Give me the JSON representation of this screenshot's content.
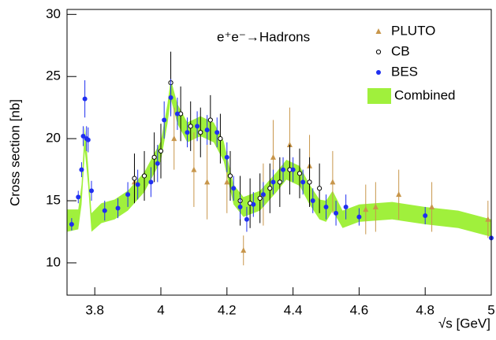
{
  "chart_data": {
    "type": "errorbar",
    "annotation": "e⁺e⁻→Hadrons",
    "x_label": "√s   [GeV]",
    "y_label": "Cross section [nb]",
    "xlim": [
      3.716,
      5.0
    ],
    "ylim": [
      7.4,
      30.4
    ],
    "xticks": [
      3.8,
      4,
      4.2,
      4.4,
      4.6,
      4.8,
      5
    ],
    "yticks": [
      10,
      15,
      20,
      25,
      30
    ],
    "legend": "upper right",
    "band": {
      "name": "Combined",
      "color": "#a0f03c",
      "x": [
        3.716,
        3.75,
        3.76,
        3.77,
        3.78,
        3.79,
        3.82,
        3.86,
        3.9,
        3.95,
        4.0,
        4.02,
        4.03,
        4.05,
        4.08,
        4.12,
        4.16,
        4.19,
        4.22,
        4.25,
        4.3,
        4.35,
        4.38,
        4.42,
        4.45,
        4.48,
        4.5,
        4.52,
        4.55,
        4.6,
        4.7,
        4.8,
        4.9,
        5.0
      ],
      "lower": [
        12.5,
        12.7,
        14.7,
        19.0,
        16.2,
        12.5,
        13.2,
        13.5,
        14.2,
        15.7,
        18.2,
        21.2,
        23.2,
        21.2,
        19.7,
        20.2,
        19.7,
        18.2,
        14.7,
        13.7,
        14.2,
        15.7,
        16.7,
        16.2,
        14.7,
        13.5,
        13.3,
        14.2,
        12.8,
        13.3,
        13.5,
        13.1,
        12.8,
        12.1
      ],
      "upper": [
        14.3,
        14.3,
        16.3,
        21.0,
        17.8,
        14.0,
        14.8,
        15.1,
        15.8,
        17.3,
        19.8,
        22.8,
        24.8,
        22.8,
        21.3,
        21.8,
        21.3,
        19.8,
        16.3,
        15.3,
        15.8,
        17.3,
        18.3,
        17.8,
        16.3,
        15.1,
        15.0,
        15.8,
        14.2,
        14.7,
        14.9,
        14.5,
        14.2,
        13.5
      ]
    },
    "series": [
      {
        "name": "PLUTO",
        "color": "#c8964b",
        "marker": "triangle",
        "x": [
          3.92,
          4.04,
          4.1,
          4.14,
          4.2,
          4.25,
          4.31,
          4.34,
          4.39,
          4.45,
          4.52,
          4.62,
          4.65,
          4.72,
          4.82,
          4.99
        ],
        "values": [
          16.5,
          20,
          17.5,
          16.5,
          16.5,
          11,
          15.5,
          18.5,
          19.5,
          17.8,
          16.5,
          14.3,
          14.5,
          15.5,
          14.5,
          13.5
        ],
        "errors": [
          1.5,
          2.5,
          3,
          3,
          2.5,
          1.2,
          2.5,
          3,
          3,
          2.5,
          2.5,
          2,
          2,
          2,
          2,
          1.5
        ]
      },
      {
        "name": "CB",
        "color": "#000000",
        "marker": "open-circle",
        "x": [
          3.92,
          3.95,
          3.98,
          4.0,
          4.03,
          4.06,
          4.09,
          4.12,
          4.15,
          4.18,
          4.21,
          4.24,
          4.27,
          4.3,
          4.33,
          4.36,
          4.39,
          4.42,
          4.45,
          4.48
        ],
        "values": [
          16.8,
          17,
          18.5,
          19,
          24.5,
          22,
          21,
          20.5,
          21.5,
          20,
          17,
          15,
          14.8,
          15.2,
          16,
          16.5,
          17.5,
          17.2,
          16.5,
          16
        ],
        "errors": [
          2,
          2,
          2,
          2.2,
          2.5,
          2.2,
          2,
          2,
          2,
          2,
          2,
          2,
          2,
          2,
          2,
          2,
          2,
          2,
          2,
          2
        ]
      },
      {
        "name": "BES",
        "color": "#1f2ff0",
        "marker": "circle",
        "x": [
          3.73,
          3.75,
          3.76,
          3.765,
          3.77,
          3.775,
          3.78,
          3.79,
          3.83,
          3.87,
          3.9,
          3.93,
          3.97,
          3.99,
          4.01,
          4.03,
          4.05,
          4.08,
          4.11,
          4.14,
          4.17,
          4.2,
          4.22,
          4.24,
          4.26,
          4.28,
          4.31,
          4.34,
          4.37,
          4.4,
          4.43,
          4.46,
          4.5,
          4.53,
          4.56,
          4.6,
          4.8,
          5.0
        ],
        "values": [
          13.1,
          15.3,
          17.5,
          20.2,
          23.2,
          20,
          19.9,
          15.8,
          14.2,
          14.4,
          15.5,
          16.3,
          16.5,
          18,
          21.5,
          23.3,
          22,
          20.5,
          21,
          20.7,
          20.5,
          18.5,
          16,
          14.5,
          13.5,
          14.7,
          15.5,
          16.5,
          17.5,
          17.5,
          16.5,
          15,
          14.5,
          14,
          14.5,
          13.7,
          13.8,
          12
        ],
        "errors": [
          0.5,
          0.5,
          0.6,
          0.8,
          1.5,
          1,
          1,
          0.8,
          0.8,
          0.8,
          1,
          1.2,
          1.2,
          1.5,
          1.5,
          1.5,
          1.3,
          1.2,
          1.2,
          1.2,
          1.2,
          1.2,
          1,
          1,
          1,
          1,
          1,
          1,
          1,
          1,
          1,
          1,
          1,
          1,
          1,
          0.7,
          0.7,
          0.7
        ]
      }
    ]
  }
}
